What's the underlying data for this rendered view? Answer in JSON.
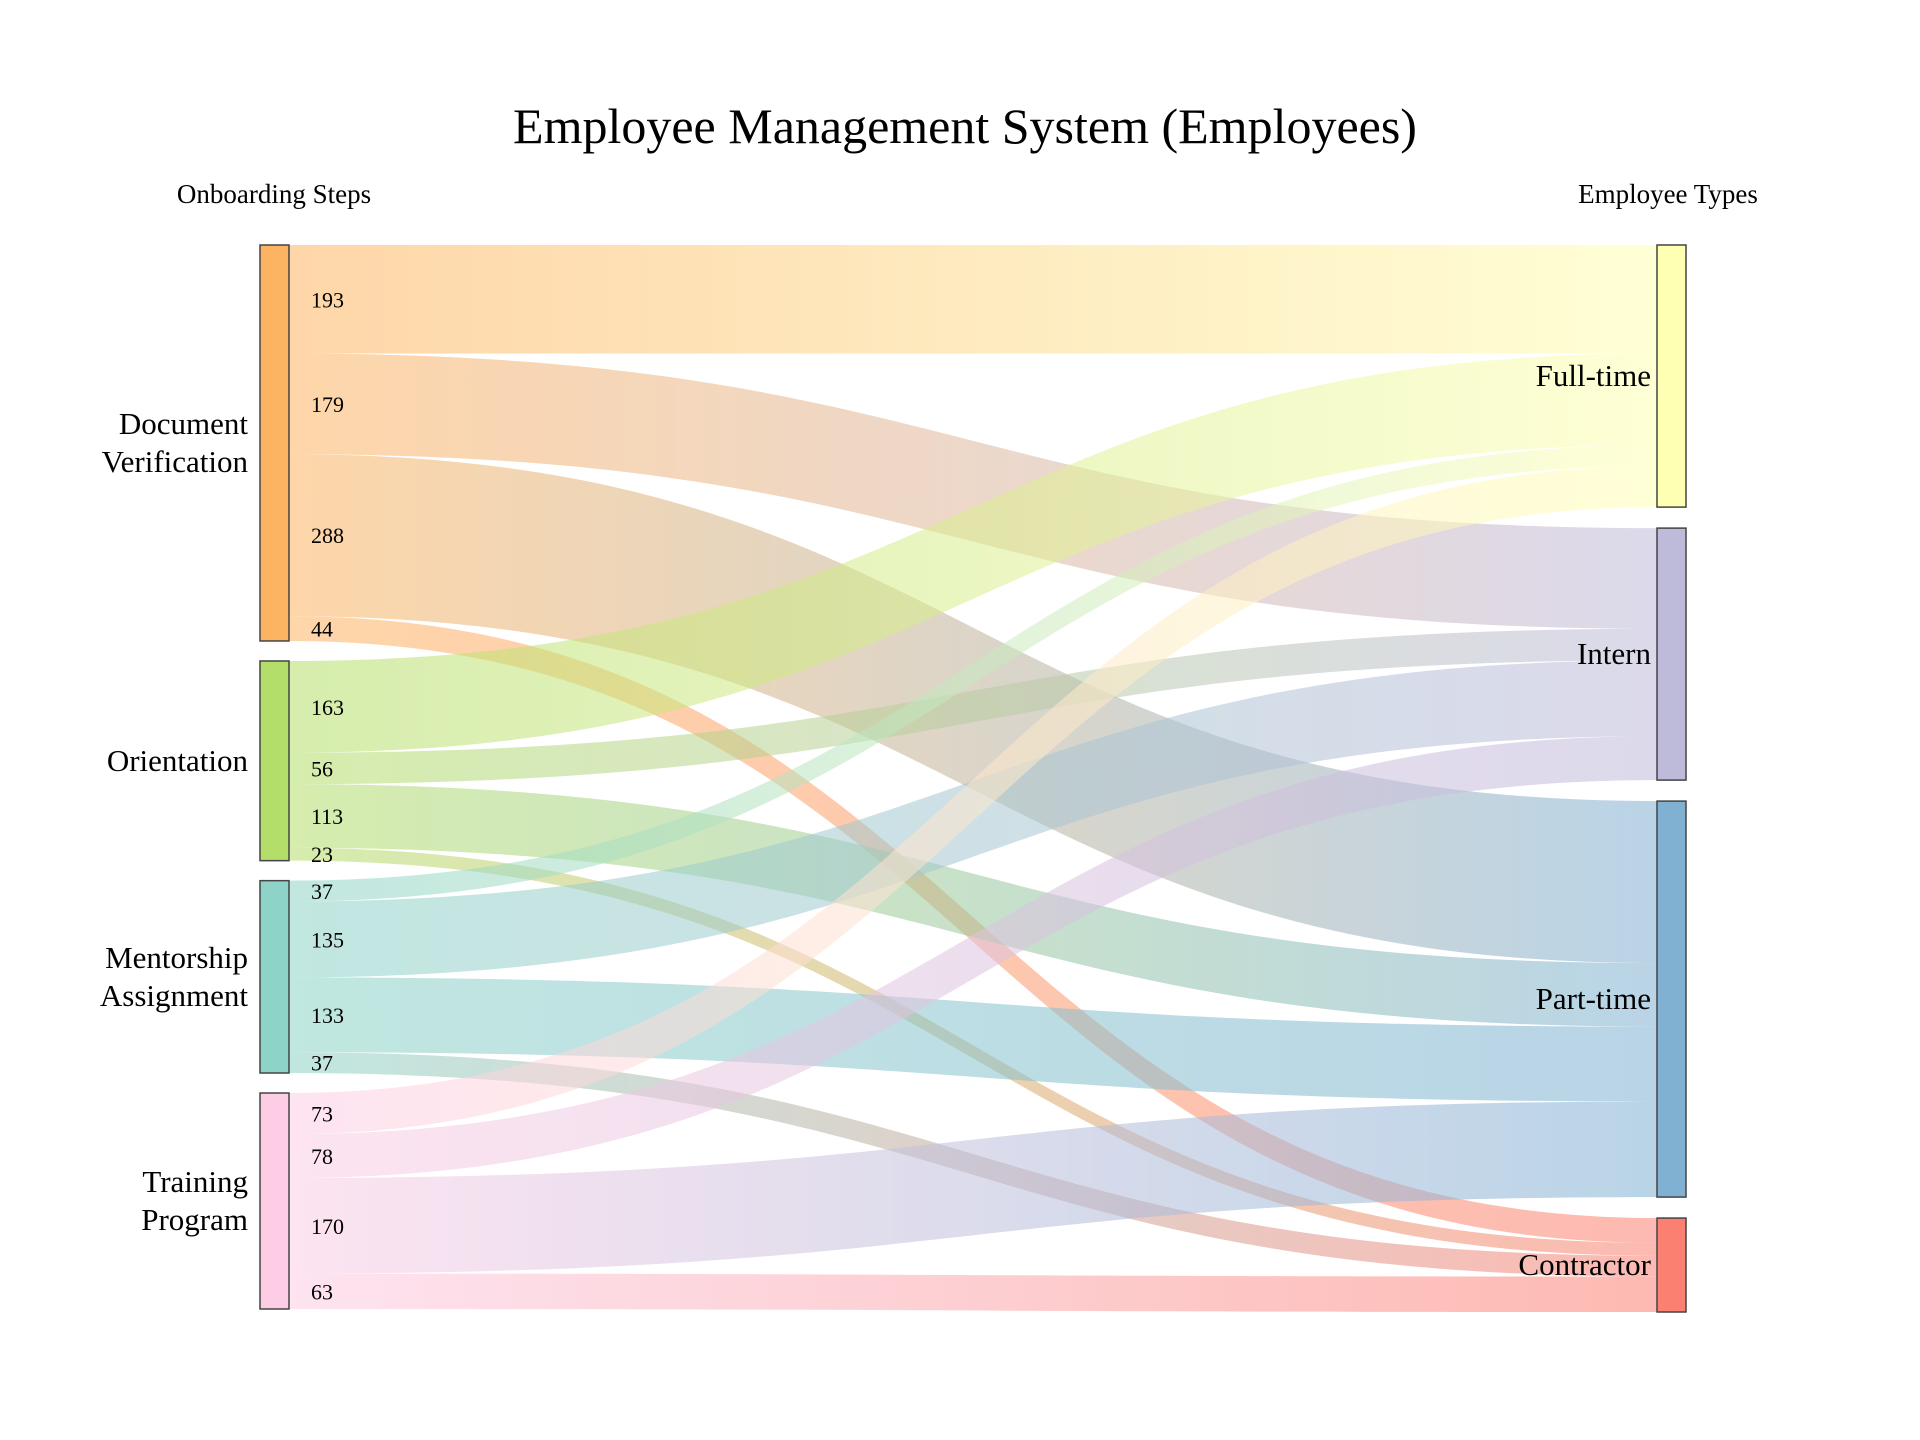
{
  "chart_data": {
    "type": "sankey",
    "title": "Employee Management System (Employees)",
    "source_header": "Onboarding Steps",
    "target_header": "Employee Types",
    "sources": [
      {
        "name": "Document Verification",
        "lines": [
          "Document",
          "Verification"
        ],
        "color": "#FDB462"
      },
      {
        "name": "Orientation",
        "lines": [
          "Orientation"
        ],
        "color": "#B3DE69"
      },
      {
        "name": "Mentorship Assignment",
        "lines": [
          "Mentorship",
          "Assignment"
        ],
        "color": "#8DD3C7"
      },
      {
        "name": "Training Program",
        "lines": [
          "Training",
          "Program"
        ],
        "color": "#FCCDE5"
      }
    ],
    "targets": [
      {
        "name": "Full-time",
        "color": "#FFFFB3"
      },
      {
        "name": "Intern",
        "color": "#BEBADA"
      },
      {
        "name": "Part-time",
        "color": "#80B1D3"
      },
      {
        "name": "Contractor",
        "color": "#FB8072"
      }
    ],
    "flows": [
      {
        "source": "Document Verification",
        "target": "Full-time",
        "value": 193,
        "label": "193"
      },
      {
        "source": "Document Verification",
        "target": "Intern",
        "value": 179,
        "label": "179"
      },
      {
        "source": "Document Verification",
        "target": "Part-time",
        "value": 288,
        "label": "288"
      },
      {
        "source": "Document Verification",
        "target": "Contractor",
        "value": 44,
        "label": "44"
      },
      {
        "source": "Orientation",
        "target": "Full-time",
        "value": 163,
        "label": "163"
      },
      {
        "source": "Orientation",
        "target": "Intern",
        "value": 56,
        "label": "56"
      },
      {
        "source": "Orientation",
        "target": "Part-time",
        "value": 113,
        "label": "113"
      },
      {
        "source": "Orientation",
        "target": "Contractor",
        "value": 23,
        "label": "23"
      },
      {
        "source": "Mentorship Assignment",
        "target": "Full-time",
        "value": 37,
        "label": "37"
      },
      {
        "source": "Mentorship Assignment",
        "target": "Intern",
        "value": 135,
        "label": "135"
      },
      {
        "source": "Mentorship Assignment",
        "target": "Part-time",
        "value": 133,
        "label": "133"
      },
      {
        "source": "Mentorship Assignment",
        "target": "Contractor",
        "value": 37,
        "label": "37"
      },
      {
        "source": "Training Program",
        "target": "Full-time",
        "value": 73,
        "label": "73"
      },
      {
        "source": "Training Program",
        "target": "Intern",
        "value": 78,
        "label": "78"
      },
      {
        "source": "Training Program",
        "target": "Part-time",
        "value": 170,
        "label": "170"
      },
      {
        "source": "Training Program",
        "target": "Contractor",
        "value": 63,
        "label": "63"
      }
    ]
  }
}
